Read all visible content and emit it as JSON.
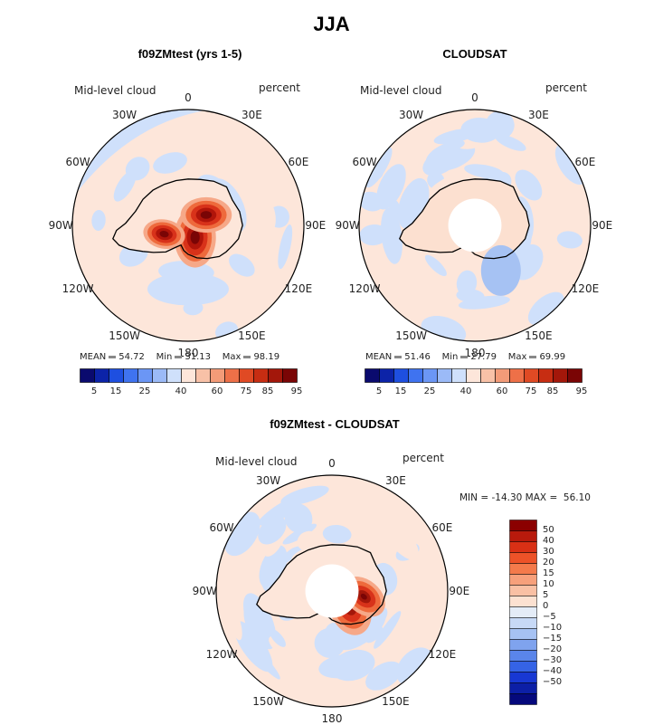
{
  "title": "JJA",
  "panels": [
    {
      "id": "model",
      "title": "f09ZMtest (yrs 1-5)",
      "variable": "Mid-level cloud",
      "units": "percent",
      "stats": {
        "mean_label": "MEAN",
        "mean": "54.72",
        "min_label": "Min",
        "min": "31.13",
        "max_label": "Max",
        "max": "98.19"
      },
      "polar_hole": false
    },
    {
      "id": "obs",
      "title": "CLOUDSAT",
      "variable": "Mid-level cloud",
      "units": "percent",
      "stats": {
        "mean_label": "MEAN",
        "mean": "51.46",
        "min_label": "Min",
        "min": "27.79",
        "max_label": "Max",
        "max": "69.99"
      },
      "polar_hole": true
    },
    {
      "id": "diff",
      "title": "f09ZMtest - CLOUDSAT",
      "variable": "Mid-level cloud",
      "units": "percent",
      "minmax_text": "MIN = -14.30 MAX =  56.10",
      "polar_hole": true
    }
  ],
  "longitude_labels": [
    "0",
    "30E",
    "60E",
    "90E",
    "120E",
    "150E",
    "180",
    "150W",
    "120W",
    "90W",
    "60W",
    "30W"
  ],
  "horizontal_colorbar": {
    "colors": [
      "#0a0a6e",
      "#0c23a8",
      "#1e4fe0",
      "#3f73f0",
      "#6b96f5",
      "#9bbaf7",
      "#cfe0fb",
      "#fde6da",
      "#f8c1a7",
      "#f39b78",
      "#ee7048",
      "#e04a24",
      "#c72d12",
      "#a3170a",
      "#7a0505"
    ],
    "tick_labels": [
      "5",
      "15",
      "25",
      "40",
      "60",
      "75",
      "85",
      "95"
    ]
  },
  "vertical_colorbar": {
    "colors": [
      "#8b0000",
      "#b81a0c",
      "#d93015",
      "#ed5228",
      "#f47a4b",
      "#f7a07b",
      "#f9c0a4",
      "#fce1d1",
      "#e4ecf7",
      "#c7d9f6",
      "#a6c2f3",
      "#7fa3ee",
      "#5a85ea",
      "#3563e6",
      "#1838d3",
      "#0c1fa6",
      "#05097c"
    ],
    "tick_labels": [
      "50",
      "40",
      "30",
      "20",
      "15",
      "10",
      "5",
      "0",
      "−5",
      "−10",
      "−15",
      "−20",
      "−30",
      "−40",
      "−50"
    ]
  },
  "colors": {
    "land_outline": "#000000",
    "map_border": "#000000",
    "positive_light": "#fde6da",
    "negative_light": "#cfe0fb"
  }
}
